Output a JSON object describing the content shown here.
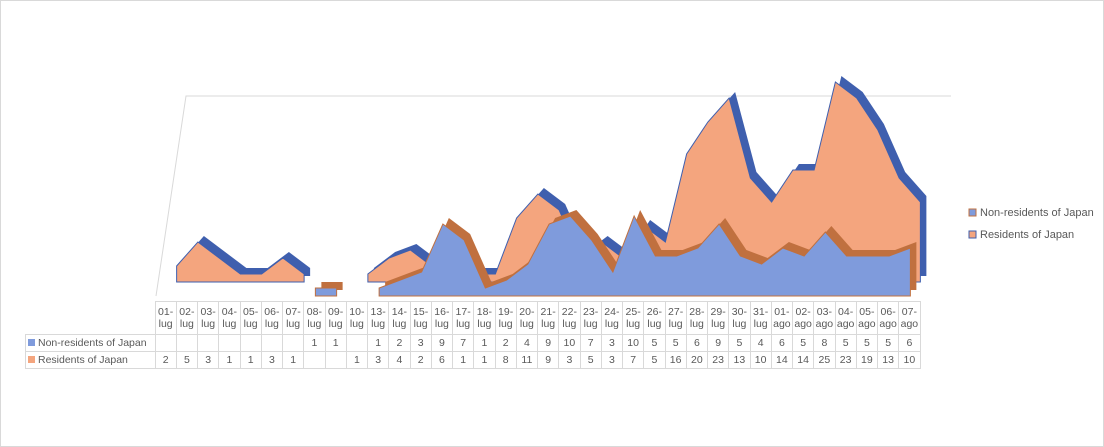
{
  "chart_data": {
    "type": "area",
    "categories": [
      "01-lug",
      "02-lug",
      "03-lug",
      "04-lug",
      "05-lug",
      "06-lug",
      "07-lug",
      "08-lug",
      "09-lug",
      "10-lug",
      "13-lug",
      "14-lug",
      "15-lug",
      "16-lug",
      "17-lug",
      "18-lug",
      "19-lug",
      "20-lug",
      "21-lug",
      "22-lug",
      "23-lug",
      "24-lug",
      "25-lug",
      "26-lug",
      "27-lug",
      "28-lug",
      "29-lug",
      "30-lug",
      "31-lug",
      "01-ago",
      "02-ago",
      "03-ago",
      "04-ago",
      "05-ago",
      "06-ago",
      "07-ago"
    ],
    "series": [
      {
        "name": "Non-residents of Japan",
        "color": "#7f9bdc",
        "values": [
          null,
          null,
          null,
          null,
          null,
          null,
          null,
          1,
          1,
          null,
          1,
          2,
          3,
          9,
          7,
          1,
          2,
          4,
          9,
          10,
          7,
          3,
          10,
          5,
          5,
          6,
          9,
          5,
          4,
          6,
          5,
          8,
          5,
          5,
          5,
          6
        ]
      },
      {
        "name": "Residents of Japan",
        "color": "#f4a57e",
        "values": [
          2,
          5,
          3,
          1,
          1,
          3,
          1,
          null,
          null,
          1,
          3,
          4,
          2,
          6,
          1,
          1,
          8,
          11,
          9,
          3,
          5,
          3,
          7,
          5,
          16,
          20,
          23,
          13,
          10,
          14,
          14,
          25,
          23,
          19,
          13,
          10
        ]
      }
    ],
    "ylim": [
      0,
      25
    ],
    "legend": "right"
  }
}
